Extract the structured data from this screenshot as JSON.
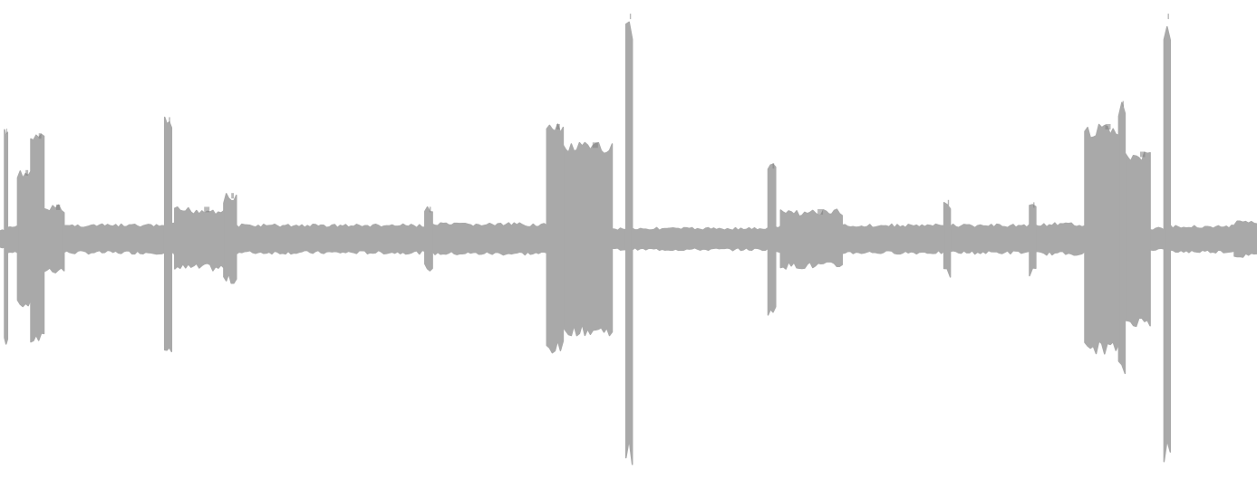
{
  "waveform": {
    "colors": {
      "background": "#ffffff",
      "fill": "#a9a9a9",
      "edge": "#7f7f7f"
    },
    "amplitude_max": 1.0,
    "segments": [
      {
        "start": 0.0,
        "end": 0.0036,
        "amplitude": 0.04
      },
      {
        "start": 0.0036,
        "end": 0.006,
        "amplitude": 0.48
      },
      {
        "start": 0.006,
        "end": 0.014,
        "amplitude": 0.06
      },
      {
        "start": 0.014,
        "end": 0.0245,
        "amplitude": 0.3
      },
      {
        "start": 0.0245,
        "end": 0.035,
        "amplitude": 0.46
      },
      {
        "start": 0.035,
        "end": 0.051,
        "amplitude": 0.15
      },
      {
        "start": 0.051,
        "end": 0.131,
        "amplitude": 0.065
      },
      {
        "start": 0.131,
        "end": 0.1365,
        "amplitude": 0.53
      },
      {
        "start": 0.1365,
        "end": 0.139,
        "amplitude": 0.07
      },
      {
        "start": 0.139,
        "end": 0.178,
        "amplitude": 0.14
      },
      {
        "start": 0.178,
        "end": 0.188,
        "amplitude": 0.2
      },
      {
        "start": 0.188,
        "end": 0.338,
        "amplitude": 0.065
      },
      {
        "start": 0.338,
        "end": 0.344,
        "amplitude": 0.14
      },
      {
        "start": 0.344,
        "end": 0.435,
        "amplitude": 0.07
      },
      {
        "start": 0.435,
        "end": 0.448,
        "amplitude": 0.5
      },
      {
        "start": 0.448,
        "end": 0.487,
        "amplitude": 0.42
      },
      {
        "start": 0.487,
        "end": 0.498,
        "amplitude": 0.05
      },
      {
        "start": 0.498,
        "end": 0.503,
        "amplitude": 0.98
      },
      {
        "start": 0.503,
        "end": 0.611,
        "amplitude": 0.05
      },
      {
        "start": 0.611,
        "end": 0.617,
        "amplitude": 0.33
      },
      {
        "start": 0.617,
        "end": 0.621,
        "amplitude": 0.06
      },
      {
        "start": 0.621,
        "end": 0.67,
        "amplitude": 0.13
      },
      {
        "start": 0.67,
        "end": 0.751,
        "amplitude": 0.065
      },
      {
        "start": 0.751,
        "end": 0.756,
        "amplitude": 0.17
      },
      {
        "start": 0.756,
        "end": 0.819,
        "amplitude": 0.065
      },
      {
        "start": 0.819,
        "end": 0.824,
        "amplitude": 0.16
      },
      {
        "start": 0.824,
        "end": 0.863,
        "amplitude": 0.07
      },
      {
        "start": 0.863,
        "end": 0.89,
        "amplitude": 0.5
      },
      {
        "start": 0.89,
        "end": 0.895,
        "amplitude": 0.6
      },
      {
        "start": 0.895,
        "end": 0.915,
        "amplitude": 0.38
      },
      {
        "start": 0.915,
        "end": 0.926,
        "amplitude": 0.05
      },
      {
        "start": 0.926,
        "end": 0.931,
        "amplitude": 0.98
      },
      {
        "start": 0.931,
        "end": 0.982,
        "amplitude": 0.06
      },
      {
        "start": 0.982,
        "end": 1.0,
        "amplitude": 0.08
      }
    ]
  }
}
